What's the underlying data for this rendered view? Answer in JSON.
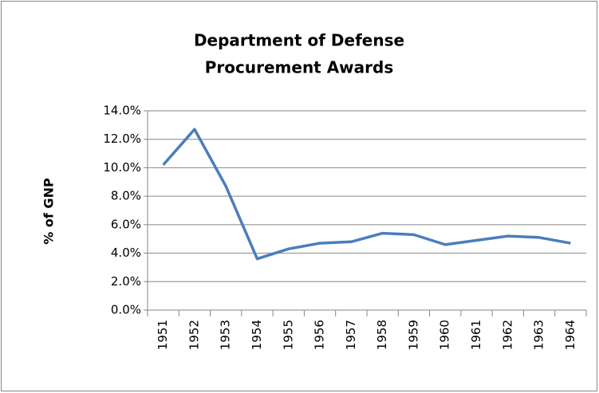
{
  "chart_data": {
    "type": "line",
    "title": [
      "Department of Defense",
      "Procurement Awards"
    ],
    "y_label": "% of GNP",
    "categories": [
      "1951",
      "1952",
      "1953",
      "1954",
      "1955",
      "1956",
      "1957",
      "1958",
      "1959",
      "1960",
      "1961",
      "1962",
      "1963",
      "1964"
    ],
    "series": [
      {
        "name": "% of GNP",
        "color": "#4a7ebb",
        "values": [
          10.2,
          12.7,
          8.7,
          3.6,
          4.3,
          4.7,
          4.8,
          5.4,
          5.3,
          4.6,
          4.9,
          5.2,
          5.1,
          4.7
        ]
      }
    ],
    "ylim": [
      0,
      14
    ],
    "yticks": [
      {
        "value": 0,
        "label": "0.0%"
      },
      {
        "value": 2,
        "label": "2.0%"
      },
      {
        "value": 4,
        "label": "4.0%"
      },
      {
        "value": 6,
        "label": "6.0%"
      },
      {
        "value": 8,
        "label": "8.0%"
      },
      {
        "value": 10,
        "label": "10.0%"
      },
      {
        "value": 12,
        "label": "12.0%"
      },
      {
        "value": 14,
        "label": "14.0%"
      }
    ],
    "grid": true
  }
}
